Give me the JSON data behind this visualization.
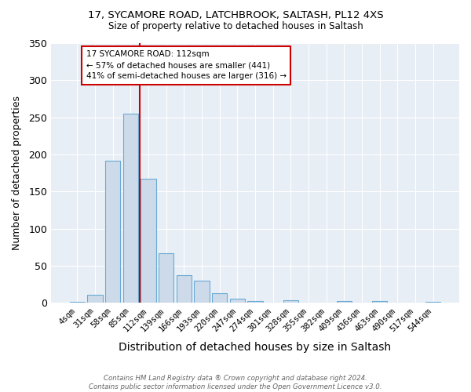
{
  "title_line1": "17, SYCAMORE ROAD, LATCHBROOK, SALTASH, PL12 4XS",
  "title_line2": "Size of property relative to detached houses in Saltash",
  "xlabel": "Distribution of detached houses by size in Saltash",
  "ylabel": "Number of detached properties",
  "bin_labels": [
    "4sqm",
    "31sqm",
    "58sqm",
    "85sqm",
    "112sqm",
    "139sqm",
    "166sqm",
    "193sqm",
    "220sqm",
    "247sqm",
    "274sqm",
    "301sqm",
    "328sqm",
    "355sqm",
    "382sqm",
    "409sqm",
    "436sqm",
    "463sqm",
    "490sqm",
    "517sqm",
    "544sqm"
  ],
  "bar_heights": [
    2,
    11,
    192,
    255,
    167,
    67,
    37,
    30,
    13,
    6,
    3,
    0,
    4,
    0,
    0,
    3,
    0,
    3,
    0,
    0,
    2
  ],
  "bar_color": "#cddaea",
  "bar_edge_color": "#6aaad4",
  "vline_color": "#cc0000",
  "annotation_text": "17 SYCAMORE ROAD: 112sqm\n← 57% of detached houses are smaller (441)\n41% of semi-detached houses are larger (316) →",
  "annotation_box_color": "white",
  "annotation_box_edge": "#cc0000",
  "footer": "Contains HM Land Registry data ® Crown copyright and database right 2024.\nContains public sector information licensed under the Open Government Licence v3.0.",
  "plot_background": "#e8eef5",
  "grid_color": "#ffffff",
  "ylim": [
    0,
    350
  ],
  "yticks": [
    0,
    50,
    100,
    150,
    200,
    250,
    300,
    350
  ]
}
